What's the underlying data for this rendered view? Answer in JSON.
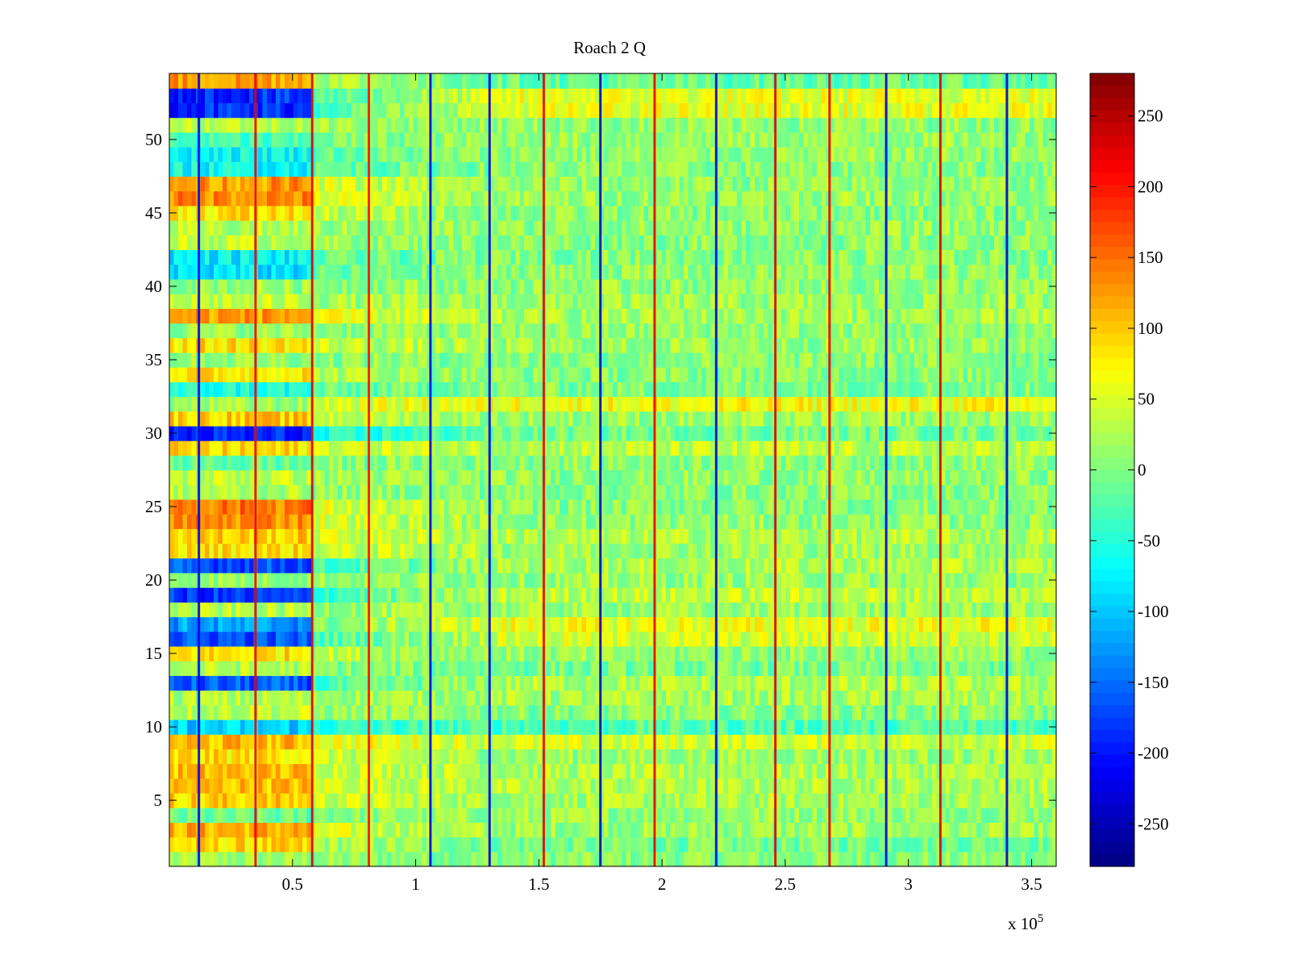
{
  "chart_data": {
    "type": "heatmap",
    "title": "Roach 2 Q",
    "xlabel": "",
    "ylabel": "",
    "x_multiplier_label": "x 10",
    "x_multiplier_exponent": "5",
    "xlim": [
      0,
      3.6
    ],
    "ylim": [
      0.5,
      54.5
    ],
    "x_ticks": [
      {
        "value": 0.5,
        "label": "0.5"
      },
      {
        "value": 1,
        "label": "1"
      },
      {
        "value": 1.5,
        "label": "1.5"
      },
      {
        "value": 2,
        "label": "2"
      },
      {
        "value": 2.5,
        "label": "2.5"
      },
      {
        "value": 3,
        "label": "3"
      },
      {
        "value": 3.5,
        "label": "3.5"
      }
    ],
    "y_ticks": [
      {
        "value": 5,
        "label": "5"
      },
      {
        "value": 10,
        "label": "10"
      },
      {
        "value": 15,
        "label": "15"
      },
      {
        "value": 20,
        "label": "20"
      },
      {
        "value": 25,
        "label": "25"
      },
      {
        "value": 30,
        "label": "30"
      },
      {
        "value": 35,
        "label": "35"
      },
      {
        "value": 40,
        "label": "40"
      },
      {
        "value": 45,
        "label": "45"
      },
      {
        "value": 50,
        "label": "50"
      }
    ],
    "colorbar": {
      "colormap": "jet",
      "range": [
        -280,
        280
      ],
      "ticks": [
        {
          "value": 250,
          "label": "250"
        },
        {
          "value": 200,
          "label": "200"
        },
        {
          "value": 150,
          "label": "150"
        },
        {
          "value": 100,
          "label": "100"
        },
        {
          "value": 50,
          "label": "50"
        },
        {
          "value": 0,
          "label": "0"
        },
        {
          "value": -50,
          "label": "-50"
        },
        {
          "value": -100,
          "label": "-100"
        },
        {
          "value": -150,
          "label": "-150"
        },
        {
          "value": -200,
          "label": "-200"
        },
        {
          "value": -250,
          "label": "-250"
        }
      ]
    },
    "rows": 54,
    "early_segment_end_x": 0.58,
    "row_offsets_early": [
      10,
      80,
      110,
      -20,
      90,
      100,
      100,
      80,
      100,
      -100,
      30,
      20,
      -170,
      20,
      80,
      -170,
      -130,
      20,
      -190,
      10,
      -170,
      80,
      90,
      130,
      140,
      20,
      30,
      -20,
      80,
      -200,
      90,
      10,
      -60,
      80,
      10,
      80,
      10,
      120,
      30,
      10,
      -90,
      -80,
      30,
      20,
      80,
      130,
      120,
      -70,
      -70,
      -40,
      30,
      -190,
      -190,
      120
    ],
    "row_offsets_late": [
      0,
      -10,
      10,
      10,
      15,
      20,
      20,
      10,
      40,
      -30,
      0,
      15,
      20,
      -10,
      5,
      40,
      55,
      10,
      30,
      10,
      20,
      15,
      20,
      5,
      0,
      0,
      5,
      5,
      25,
      -10,
      10,
      60,
      -5,
      0,
      0,
      10,
      5,
      15,
      10,
      5,
      5,
      0,
      0,
      5,
      0,
      10,
      5,
      0,
      5,
      10,
      5,
      50,
      50,
      -20
    ],
    "spike_columns": [
      {
        "x": 0.12,
        "value": -220
      },
      {
        "x": 0.35,
        "value": 220
      },
      {
        "x": 0.58,
        "value": 230
      },
      {
        "x": 0.81,
        "value": 200
      },
      {
        "x": 1.06,
        "value": -220
      },
      {
        "x": 1.3,
        "value": -230
      },
      {
        "x": 1.52,
        "value": 220
      },
      {
        "x": 1.75,
        "value": -240
      },
      {
        "x": 1.97,
        "value": 220
      },
      {
        "x": 2.22,
        "value": -230
      },
      {
        "x": 2.46,
        "value": 230
      },
      {
        "x": 2.68,
        "value": 220
      },
      {
        "x": 2.91,
        "value": -230
      },
      {
        "x": 3.13,
        "value": 230
      },
      {
        "x": 3.4,
        "value": -240
      }
    ]
  }
}
